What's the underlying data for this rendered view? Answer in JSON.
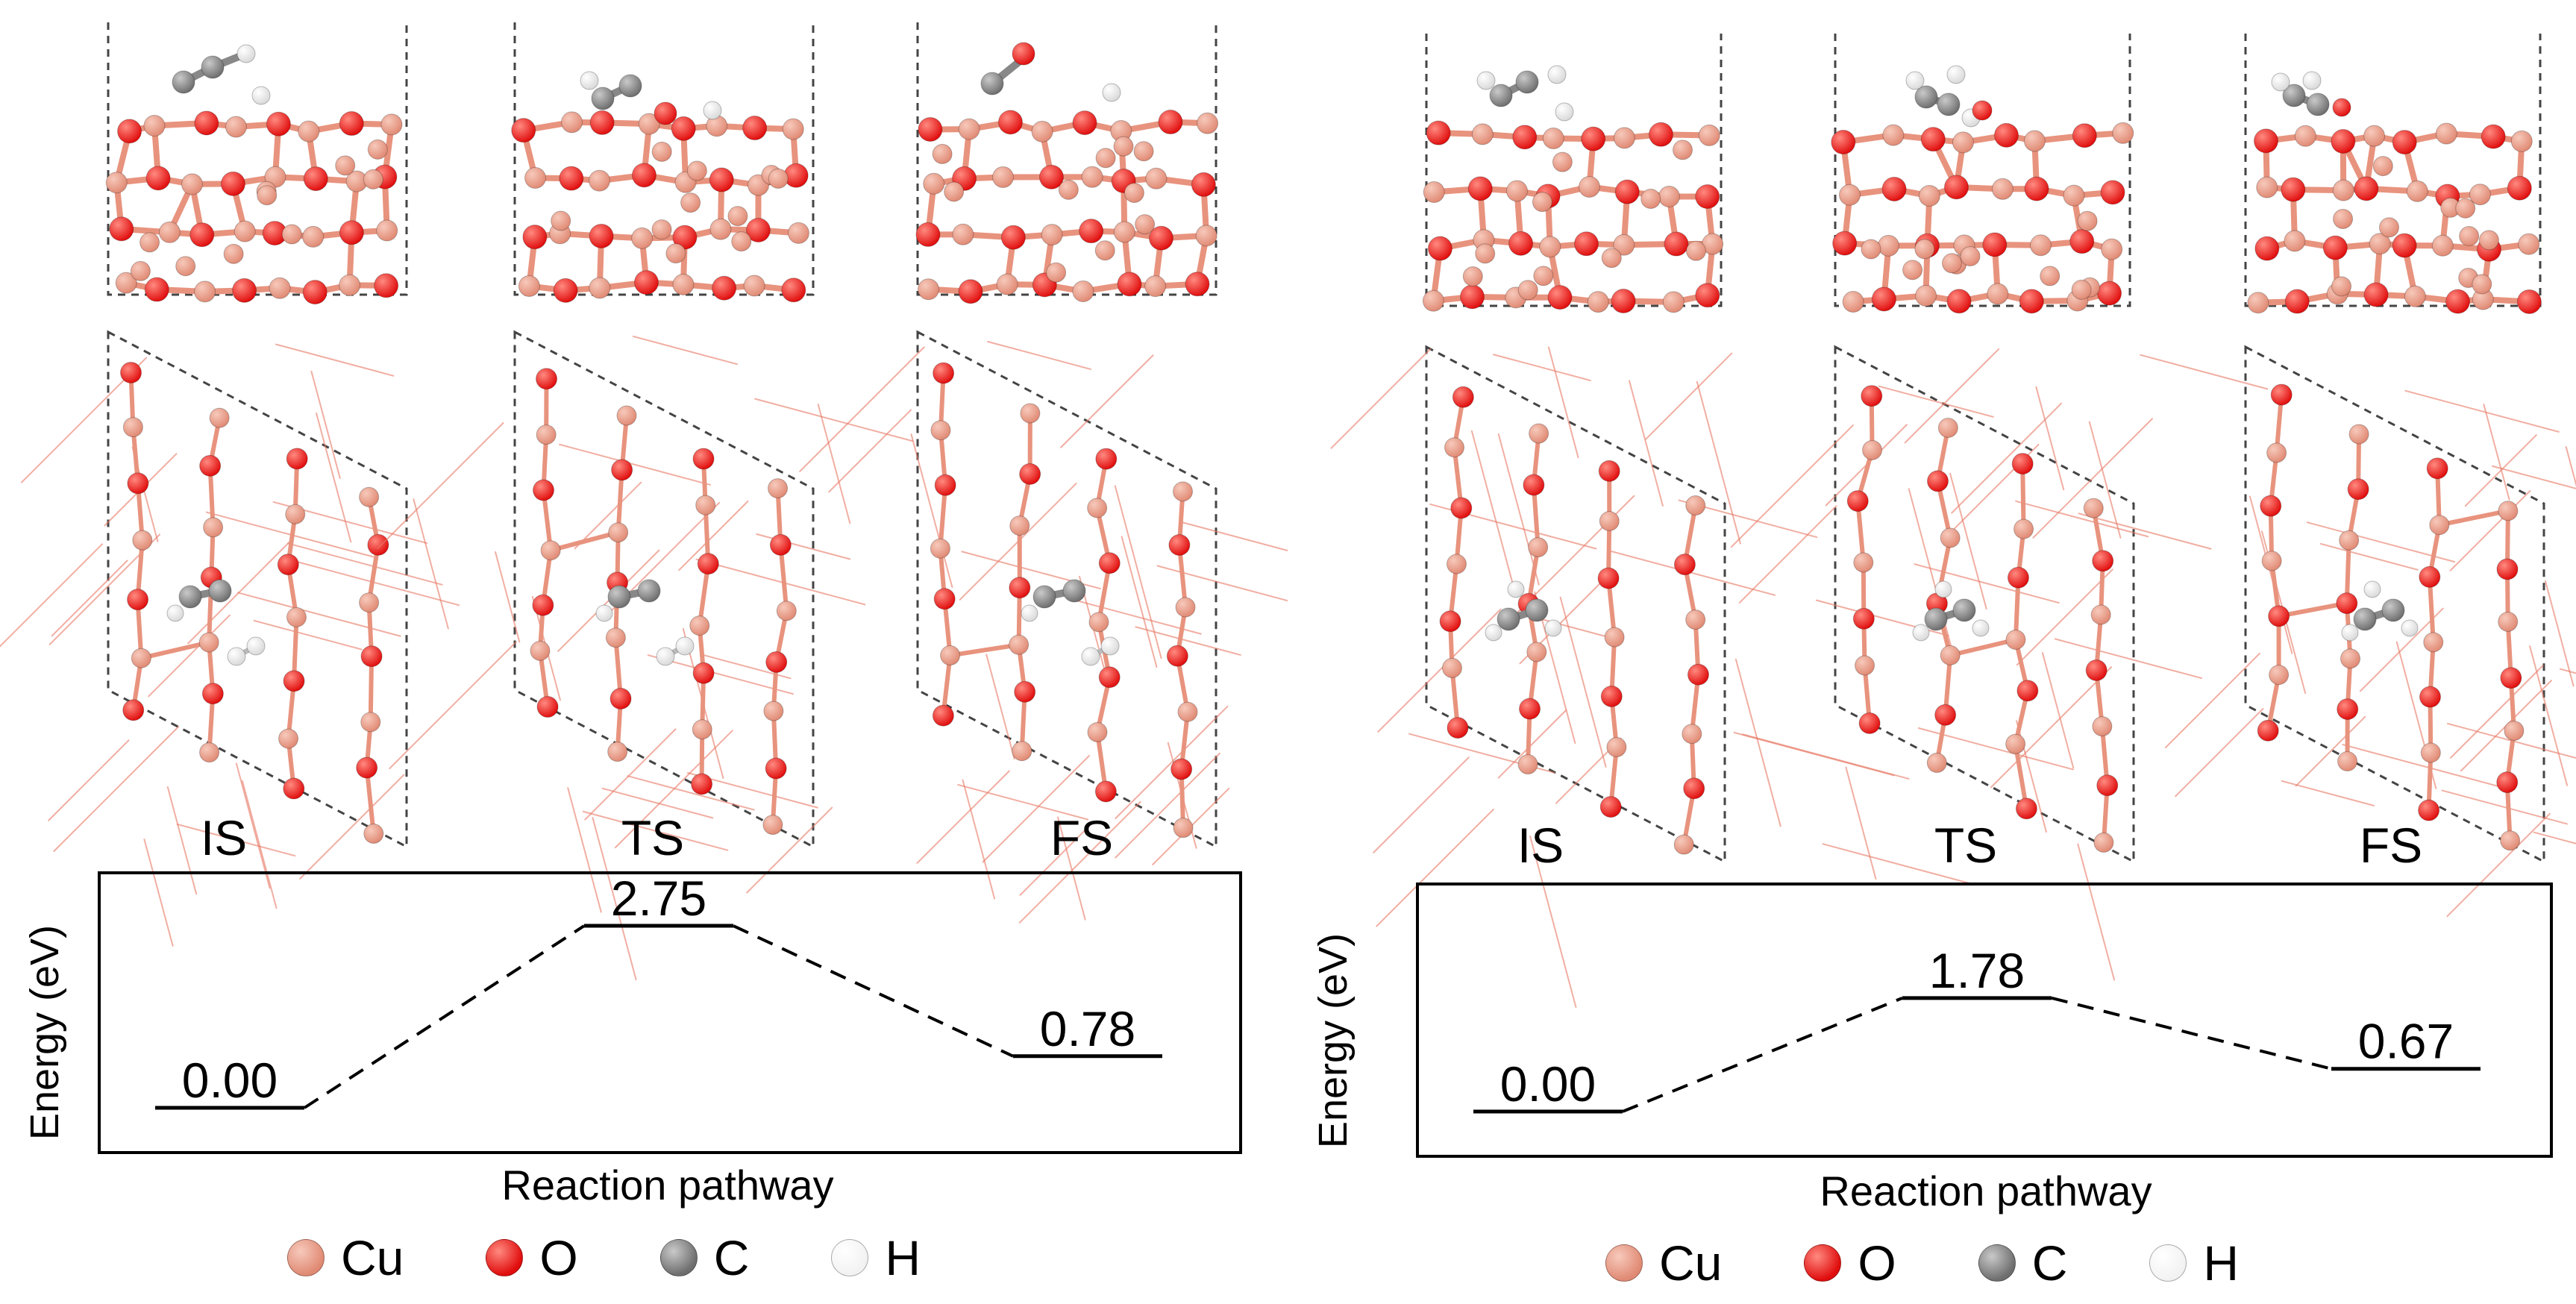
{
  "colors": {
    "Cu": "#e08a74",
    "O": "#e00d0d",
    "C": "#6e6e6e",
    "H": "#f2f2f2",
    "bond_Cu": "#e8937e",
    "bond_O": "#e23a2a",
    "line": "#000000"
  },
  "panels": [
    {
      "states": [
        {
          "label": "IS",
          "energy": 0.0,
          "energy_text": "0.00"
        },
        {
          "label": "TS",
          "energy": 2.75,
          "energy_text": "2.75"
        },
        {
          "label": "FS",
          "energy": 0.78,
          "energy_text": "0.78"
        }
      ],
      "ylabel": "Energy (eV)",
      "xlabel": "Reaction pathway"
    },
    {
      "states": [
        {
          "label": "IS",
          "energy": 0.0,
          "energy_text": "0.00"
        },
        {
          "label": "TS",
          "energy": 1.78,
          "energy_text": "1.78"
        },
        {
          "label": "FS",
          "energy": 0.67,
          "energy_text": "0.67"
        }
      ],
      "ylabel": "Energy (eV)",
      "xlabel": "Reaction pathway"
    }
  ],
  "legend": [
    {
      "symbol": "Cu",
      "icon": "cu-atom-icon"
    },
    {
      "symbol": "O",
      "icon": "o-atom-icon"
    },
    {
      "symbol": "C",
      "icon": "c-atom-icon"
    },
    {
      "symbol": "H",
      "icon": "h-atom-icon"
    }
  ]
}
